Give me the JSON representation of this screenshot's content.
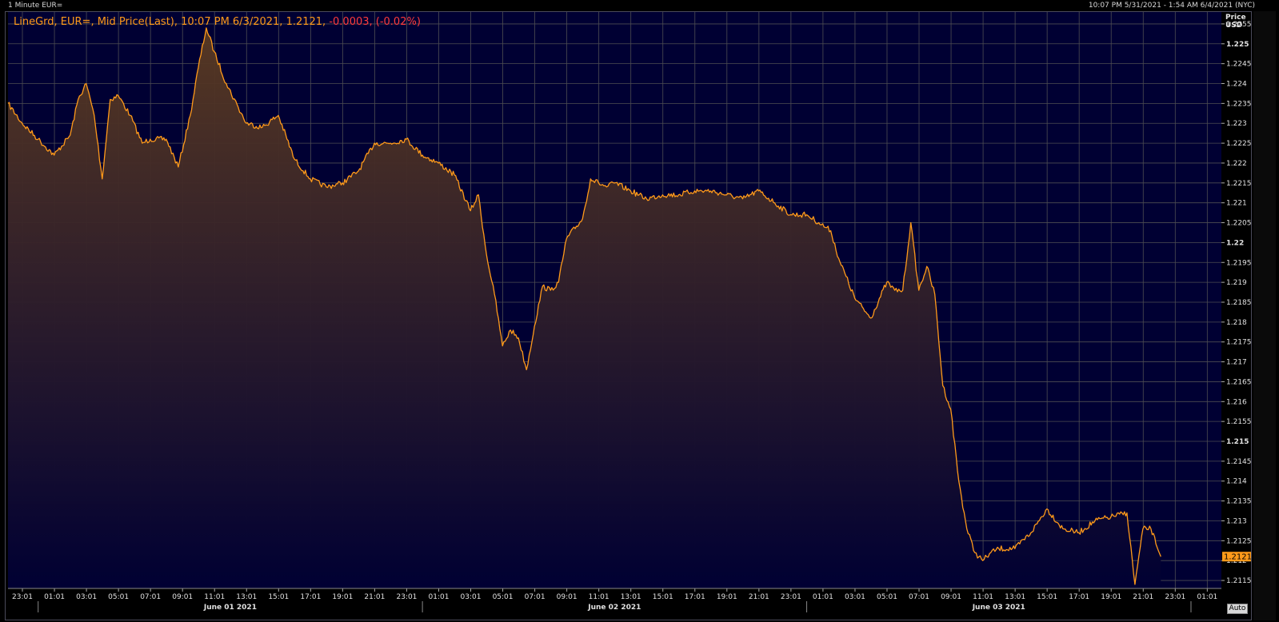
{
  "window": {
    "title": "1 Minute EUR=",
    "range": "10:07 PM 5/31/2021 - 1:54 AM 6/4/2021 (NYC)"
  },
  "legend": {
    "main": "LineGrd, EUR=, Mid Price(Last), 10:07 PM 6/3/2021, 1.2121, ",
    "change": "-0.0003, (-0.02%)"
  },
  "axis": {
    "price_label_1": "Price",
    "price_label_2": "USD",
    "auto_label": "Auto",
    "last_price": "1.2121"
  },
  "colors": {
    "background": "#000033",
    "grid": "#4d4d52",
    "line": "#ff9a1a",
    "fill_top": "#5a3a22",
    "fill_bottom": "#000033",
    "last_tag": "#ff9a1a",
    "change_negative": "#ff3b3b"
  },
  "chart_data": {
    "type": "area",
    "title": "1 Minute EUR=",
    "series": [
      {
        "name": "EUR=, Mid Price(Last)",
        "x": [
          "05/31 22:07",
          "05/31 23:00",
          "06/01 00:00",
          "06/01 01:00",
          "06/01 02:00",
          "06/01 02:30",
          "06/01 03:00",
          "06/01 03:30",
          "06/01 04:00",
          "06/01 04:30",
          "06/01 05:00",
          "06/01 05:45",
          "06/01 06:30",
          "06/01 07:00",
          "06/01 08:00",
          "06/01 08:45",
          "06/01 09:30",
          "06/01 10:00",
          "06/01 10:30",
          "06/01 11:00",
          "06/01 11:45",
          "06/01 12:30",
          "06/01 13:00",
          "06/01 14:00",
          "06/01 15:00",
          "06/01 16:00",
          "06/01 17:00",
          "06/01 18:00",
          "06/01 19:00",
          "06/01 20:00",
          "06/01 21:00",
          "06/01 22:00",
          "06/01 23:00",
          "06/02 00:00",
          "06/02 01:00",
          "06/02 02:00",
          "06/02 03:00",
          "06/02 03:30",
          "06/02 04:00",
          "06/02 04:30",
          "06/02 05:00",
          "06/02 05:30",
          "06/02 06:00",
          "06/02 06:30",
          "06/02 07:00",
          "06/02 07:30",
          "06/02 08:00",
          "06/02 08:30",
          "06/02 09:00",
          "06/02 10:00",
          "06/02 10:30",
          "06/02 11:00",
          "06/02 11:30",
          "06/02 12:00",
          "06/02 13:00",
          "06/02 14:00",
          "06/02 15:00",
          "06/02 16:00",
          "06/02 17:00",
          "06/02 18:00",
          "06/02 19:00",
          "06/02 20:00",
          "06/02 21:00",
          "06/02 22:00",
          "06/02 23:00",
          "06/03 00:00",
          "06/03 00:45",
          "06/03 01:30",
          "06/03 02:00",
          "06/03 03:00",
          "06/03 04:00",
          "06/03 05:00",
          "06/03 05:30",
          "06/03 06:00",
          "06/03 06:30",
          "06/03 07:00",
          "06/03 07:30",
          "06/03 08:00",
          "06/03 08:30",
          "06/03 09:00",
          "06/03 09:30",
          "06/03 10:00",
          "06/03 10:30",
          "06/03 11:00",
          "06/03 11:30",
          "06/03 12:00",
          "06/03 13:00",
          "06/03 14:00",
          "06/03 15:00",
          "06/03 16:00",
          "06/03 17:00",
          "06/03 18:00",
          "06/03 19:00",
          "06/03 20:00",
          "06/03 20:30",
          "06/03 21:00",
          "06/03 21:30",
          "06/03 22:07"
        ],
        "values": [
          1.2235,
          1.223,
          1.2226,
          1.2222,
          1.2227,
          1.2236,
          1.224,
          1.2232,
          1.2216,
          1.2236,
          1.2237,
          1.2232,
          1.2225,
          1.2226,
          1.2226,
          1.2219,
          1.2232,
          1.2244,
          1.2254,
          1.2248,
          1.224,
          1.2234,
          1.223,
          1.2229,
          1.2232,
          1.2221,
          1.2216,
          1.2214,
          1.2215,
          1.2218,
          1.2225,
          1.2225,
          1.2226,
          1.2222,
          1.222,
          1.2217,
          1.2208,
          1.2212,
          1.2197,
          1.2187,
          1.2174,
          1.2178,
          1.2176,
          1.2168,
          1.2179,
          1.2189,
          1.2188,
          1.219,
          1.2201,
          1.2206,
          1.2216,
          1.2215,
          1.2214,
          1.2215,
          1.2213,
          1.2211,
          1.2212,
          1.2212,
          1.2213,
          1.2213,
          1.2212,
          1.2211,
          1.2213,
          1.221,
          1.2207,
          1.2207,
          1.2205,
          1.2203,
          1.2196,
          1.2186,
          1.2181,
          1.219,
          1.2188,
          1.2188,
          1.2205,
          1.2188,
          1.2194,
          1.2187,
          1.2164,
          1.2158,
          1.214,
          1.2128,
          1.2122,
          1.212,
          1.2122,
          1.2123,
          1.2123,
          1.2127,
          1.2133,
          1.2128,
          1.2127,
          1.213,
          1.2131,
          1.2132,
          1.2114,
          1.2128,
          1.2128,
          1.2121
        ]
      }
    ],
    "ylim": [
      1.2113,
      1.2258
    ],
    "y_ticks": [
      "1.2255",
      "1.225",
      "1.2245",
      "1.224",
      "1.2235",
      "1.223",
      "1.2225",
      "1.222",
      "1.2215",
      "1.221",
      "1.2205",
      "1.22",
      "1.2195",
      "1.219",
      "1.2185",
      "1.218",
      "1.2175",
      "1.217",
      "1.2165",
      "1.216",
      "1.2155",
      "1.215",
      "1.2145",
      "1.214",
      "1.2135",
      "1.213",
      "1.2125",
      "1.212",
      "1.2115"
    ],
    "y_bold_ticks": [
      "1.225",
      "1.22",
      "1.215"
    ],
    "x_ticks": [
      "23:01",
      "01:01",
      "03:01",
      "05:01",
      "07:01",
      "09:01",
      "11:01",
      "13:01",
      "15:01",
      "17:01",
      "19:01",
      "21:01",
      "23:01",
      "01:01",
      "03:01",
      "05:01",
      "07:01",
      "09:01",
      "11:01",
      "13:01",
      "15:01",
      "17:01",
      "19:01",
      "21:01",
      "23:01",
      "01:01",
      "03:01",
      "05:01",
      "07:01",
      "09:01",
      "11:01",
      "13:01",
      "15:01",
      "17:01",
      "19:01",
      "21:01",
      "23:01",
      "01:01"
    ],
    "date_labels": [
      "June 01 2021",
      "June 02 2021",
      "June 03 2021"
    ],
    "grid": true,
    "legend_position": "top-left"
  }
}
